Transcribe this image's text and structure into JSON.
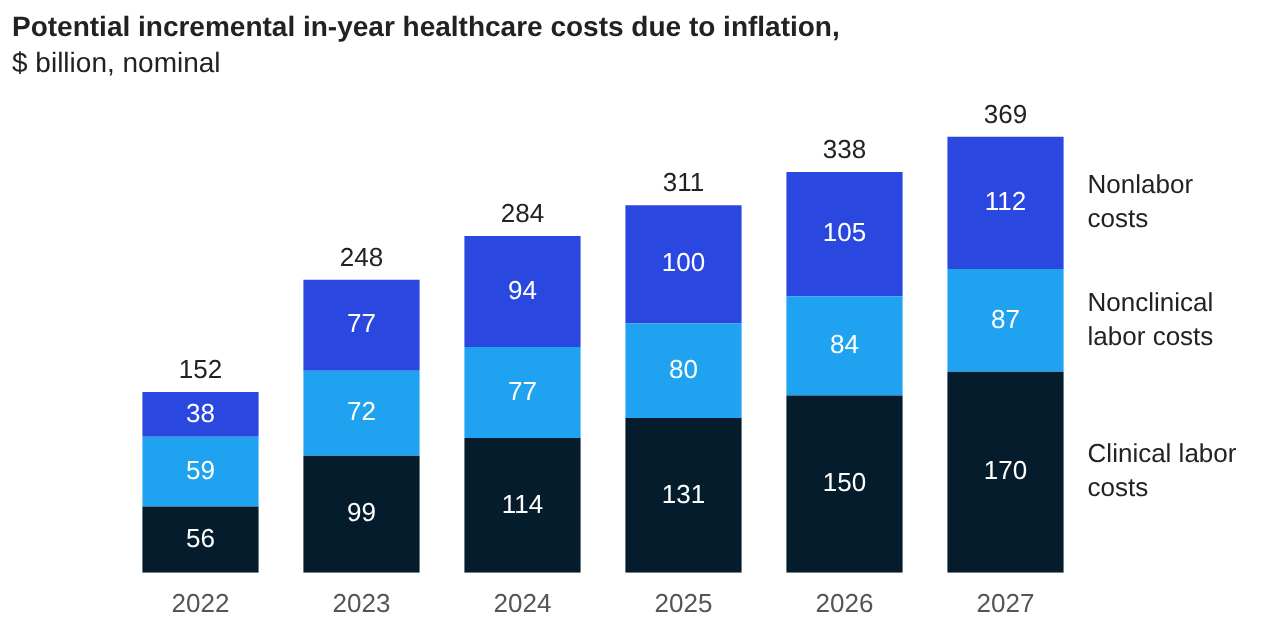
{
  "chart_data": {
    "type": "bar",
    "title": "Potential incremental in-year healthcare costs due to inflation,",
    "subtitle": "$ billion, nominal",
    "categories": [
      "2022",
      "2023",
      "2024",
      "2025",
      "2026",
      "2027"
    ],
    "stacked": true,
    "data_labels": true,
    "totals": [
      "152",
      "248",
      "284",
      "311",
      "338",
      "369"
    ],
    "grid": false,
    "series": [
      {
        "name": "Clinical labor costs",
        "color": "#051c2c",
        "values": [
          56,
          99,
          114,
          131,
          150,
          170
        ]
      },
      {
        "name": "Nonclinical labor costs",
        "color": "#1fa3f0",
        "values": [
          59,
          72,
          77,
          80,
          84,
          87
        ]
      },
      {
        "name": "Nonlabor costs",
        "color": "#2a47e0",
        "values": [
          38,
          77,
          94,
          100,
          105,
          112
        ]
      }
    ]
  }
}
